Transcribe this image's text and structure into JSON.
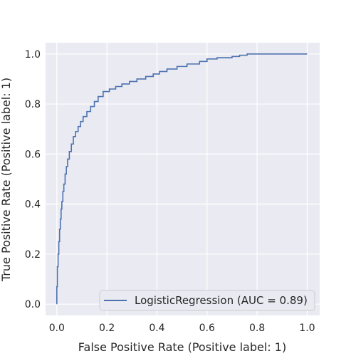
{
  "chart_data": {
    "type": "line",
    "title": "",
    "xlabel": "False Positive Rate (Positive label: 1)",
    "ylabel": "True Positive Rate (Positive label: 1)",
    "xlim": [
      -0.045,
      1.05
    ],
    "ylim": [
      -0.045,
      1.045
    ],
    "xticks": [
      0.0,
      0.2,
      0.4,
      0.6,
      0.8,
      1.0
    ],
    "yticks": [
      0.0,
      0.2,
      0.4,
      0.6,
      0.8,
      1.0
    ],
    "xtick_labels": [
      "0.0",
      "0.2",
      "0.4",
      "0.6",
      "0.8",
      "1.0"
    ],
    "ytick_labels": [
      "0.0",
      "0.2",
      "0.4",
      "0.6",
      "0.8",
      "1.0"
    ],
    "grid": true,
    "legend_position": "bottom-right",
    "series": [
      {
        "name": "LogisticRegression (AUC = 0.89)",
        "color": "#4c72b0",
        "points": [
          [
            0.0,
            0.0
          ],
          [
            0.0,
            0.07
          ],
          [
            0.002,
            0.07
          ],
          [
            0.002,
            0.15
          ],
          [
            0.005,
            0.15
          ],
          [
            0.005,
            0.2
          ],
          [
            0.008,
            0.2
          ],
          [
            0.008,
            0.25
          ],
          [
            0.011,
            0.25
          ],
          [
            0.011,
            0.3
          ],
          [
            0.014,
            0.3
          ],
          [
            0.014,
            0.34
          ],
          [
            0.017,
            0.34
          ],
          [
            0.017,
            0.38
          ],
          [
            0.02,
            0.38
          ],
          [
            0.02,
            0.41
          ],
          [
            0.024,
            0.41
          ],
          [
            0.024,
            0.45
          ],
          [
            0.028,
            0.45
          ],
          [
            0.028,
            0.48
          ],
          [
            0.033,
            0.48
          ],
          [
            0.033,
            0.52
          ],
          [
            0.038,
            0.52
          ],
          [
            0.038,
            0.55
          ],
          [
            0.043,
            0.55
          ],
          [
            0.043,
            0.58
          ],
          [
            0.05,
            0.58
          ],
          [
            0.05,
            0.61
          ],
          [
            0.058,
            0.61
          ],
          [
            0.058,
            0.64
          ],
          [
            0.066,
            0.64
          ],
          [
            0.066,
            0.67
          ],
          [
            0.075,
            0.67
          ],
          [
            0.075,
            0.69
          ],
          [
            0.085,
            0.69
          ],
          [
            0.085,
            0.71
          ],
          [
            0.095,
            0.71
          ],
          [
            0.095,
            0.73
          ],
          [
            0.105,
            0.73
          ],
          [
            0.105,
            0.75
          ],
          [
            0.12,
            0.75
          ],
          [
            0.12,
            0.77
          ],
          [
            0.135,
            0.77
          ],
          [
            0.135,
            0.79
          ],
          [
            0.15,
            0.79
          ],
          [
            0.15,
            0.81
          ],
          [
            0.165,
            0.81
          ],
          [
            0.165,
            0.83
          ],
          [
            0.185,
            0.83
          ],
          [
            0.185,
            0.85
          ],
          [
            0.21,
            0.85
          ],
          [
            0.21,
            0.86
          ],
          [
            0.235,
            0.86
          ],
          [
            0.235,
            0.87
          ],
          [
            0.26,
            0.87
          ],
          [
            0.26,
            0.88
          ],
          [
            0.29,
            0.88
          ],
          [
            0.29,
            0.89
          ],
          [
            0.32,
            0.89
          ],
          [
            0.32,
            0.9
          ],
          [
            0.355,
            0.9
          ],
          [
            0.355,
            0.91
          ],
          [
            0.385,
            0.91
          ],
          [
            0.385,
            0.92
          ],
          [
            0.41,
            0.92
          ],
          [
            0.41,
            0.93
          ],
          [
            0.44,
            0.93
          ],
          [
            0.44,
            0.94
          ],
          [
            0.48,
            0.94
          ],
          [
            0.48,
            0.95
          ],
          [
            0.52,
            0.95
          ],
          [
            0.52,
            0.96
          ],
          [
            0.57,
            0.96
          ],
          [
            0.57,
            0.97
          ],
          [
            0.6,
            0.97
          ],
          [
            0.6,
            0.98
          ],
          [
            0.64,
            0.98
          ],
          [
            0.64,
            0.985
          ],
          [
            0.7,
            0.985
          ],
          [
            0.7,
            0.99
          ],
          [
            0.73,
            0.99
          ],
          [
            0.73,
            0.995
          ],
          [
            0.76,
            0.995
          ],
          [
            0.76,
            1.0
          ],
          [
            1.0,
            1.0
          ]
        ]
      }
    ]
  }
}
